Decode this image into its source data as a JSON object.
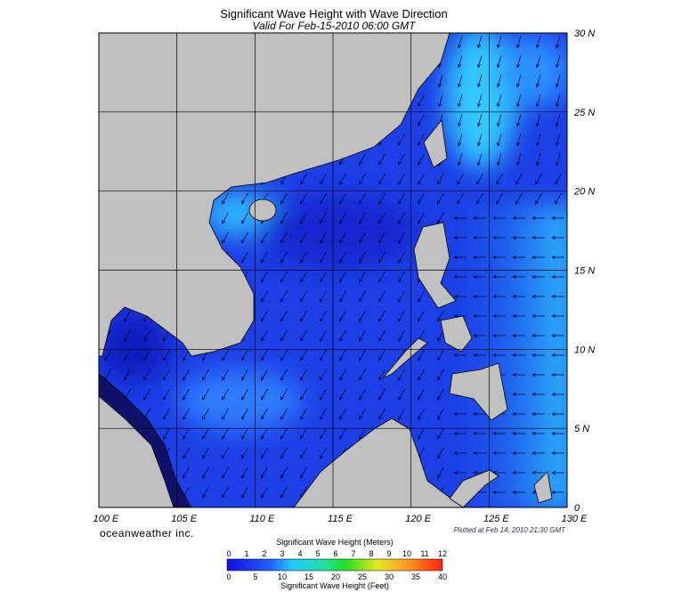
{
  "title": "Significant Wave Height with Wave Direction",
  "subtitle": "Valid For Feb-15-2010 06:00 GMT",
  "map": {
    "lat_labels": [
      "30 N",
      "25 N",
      "20 N",
      "15 N",
      "10 N",
      "5 N",
      "0"
    ],
    "lon_labels": [
      "100 E",
      "105 E",
      "110 E",
      "115 E",
      "120 E",
      "125 E",
      "130 E"
    ]
  },
  "credit": "oceanweather inc.",
  "plotted": "Plotted at Feb 14, 2010 21:30 GMT",
  "legend": {
    "title_meters": "Significant Wave Height (Meters)",
    "meters_ticks": [
      "0",
      "1",
      "2",
      "3",
      "4",
      "5",
      "6",
      "7",
      "8",
      "9",
      "10",
      "11",
      "12"
    ],
    "feet_ticks": [
      "0",
      "5",
      "10",
      "15",
      "20",
      "25",
      "30",
      "35",
      "40"
    ],
    "title_feet": "Significant Wave Height (Feet)"
  }
}
